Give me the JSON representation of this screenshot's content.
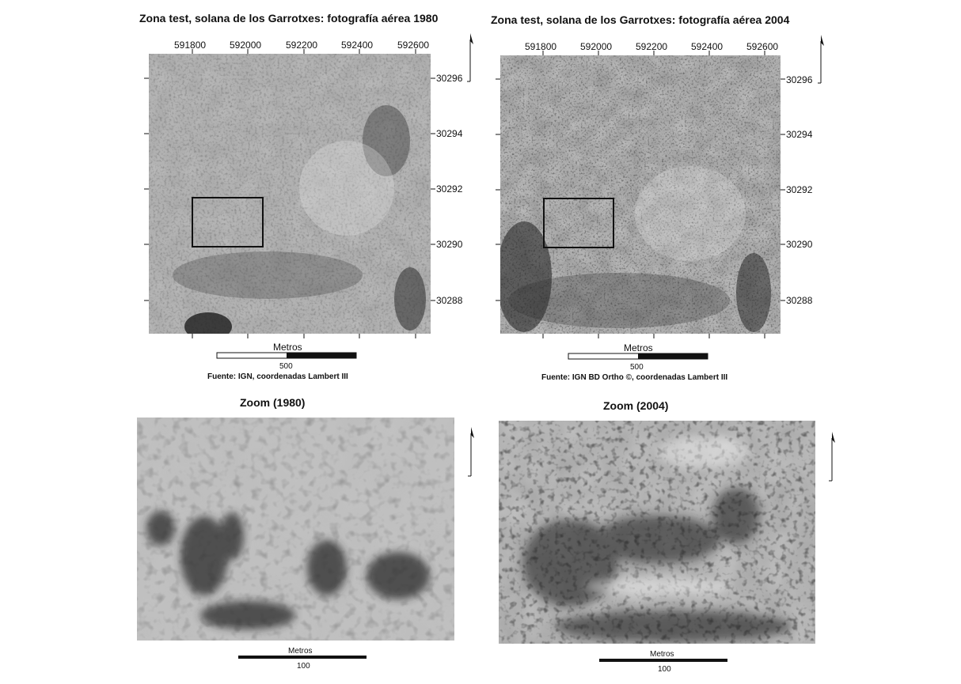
{
  "panels": [
    {
      "title": "Zona test, solana de los Garrotxes: fotografía aérea 1980",
      "x_ticks": [
        "591800",
        "592000",
        "592200",
        "592400",
        "592600"
      ],
      "y_ticks": [
        "30296",
        "30294",
        "30292",
        "30290",
        "30288"
      ],
      "scale_title": "Metros",
      "scale_value": "500",
      "source": "Fuente: IGN, coordenadas Lambert III",
      "north_arrow_icon": "north-arrow-icon"
    },
    {
      "title": "Zona test, solana de los Garrotxes: fotografía aérea 2004",
      "x_ticks": [
        "591800",
        "592000",
        "592200",
        "592400",
        "592600"
      ],
      "y_ticks": [
        "30296",
        "30294",
        "30292",
        "30290",
        "30288"
      ],
      "scale_title": "Metros",
      "scale_value": "500",
      "source": "Fuente: IGN BD Ortho ©, coordenadas Lambert III",
      "north_arrow_icon": "north-arrow-icon"
    }
  ],
  "zooms": [
    {
      "title": "Zoom (1980)",
      "scale_title": "Metros",
      "scale_value": "100",
      "north_arrow_icon": "north-arrow-icon"
    },
    {
      "title": "Zoom (2004)",
      "scale_title": "Metros",
      "scale_value": "100",
      "north_arrow_icon": "north-arrow-icon"
    }
  ]
}
